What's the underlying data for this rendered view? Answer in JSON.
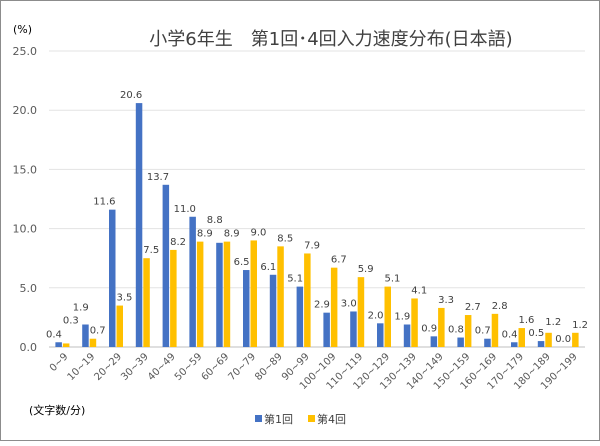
{
  "chart_data": {
    "type": "bar",
    "title": "小学6年生　第1回･4回入力速度分布(日本語)",
    "ylabel": "(%)",
    "xlabel": "(文字数/分)",
    "ylim": [
      0,
      25
    ],
    "yticks": [
      "0.0",
      "5.0",
      "10.0",
      "15.0",
      "20.0",
      "25.0"
    ],
    "grid": true,
    "legend_placement": "bottom",
    "categories": [
      "0~9",
      "10~19",
      "20~29",
      "30~39",
      "40~49",
      "50~59",
      "60~69",
      "70~79",
      "80~89",
      "90~99",
      "100~109",
      "110~119",
      "120~129",
      "130~139",
      "140~149",
      "150~159",
      "160~169",
      "170~179",
      "180~189",
      "190~199"
    ],
    "series": [
      {
        "name": "第1回",
        "color": "#4472C4",
        "values": [
          0.4,
          1.9,
          11.6,
          20.6,
          13.7,
          11.0,
          8.8,
          6.5,
          6.1,
          5.1,
          2.9,
          3.0,
          2.0,
          1.9,
          0.9,
          0.8,
          0.7,
          0.4,
          0.5,
          0.0
        ]
      },
      {
        "name": "第4回",
        "color": "#FFC000",
        "values": [
          0.3,
          0.7,
          3.5,
          7.5,
          8.2,
          8.9,
          8.9,
          9.0,
          8.5,
          7.9,
          6.7,
          5.9,
          5.1,
          4.1,
          3.3,
          2.7,
          2.8,
          1.6,
          1.2,
          1.2
        ]
      }
    ]
  }
}
